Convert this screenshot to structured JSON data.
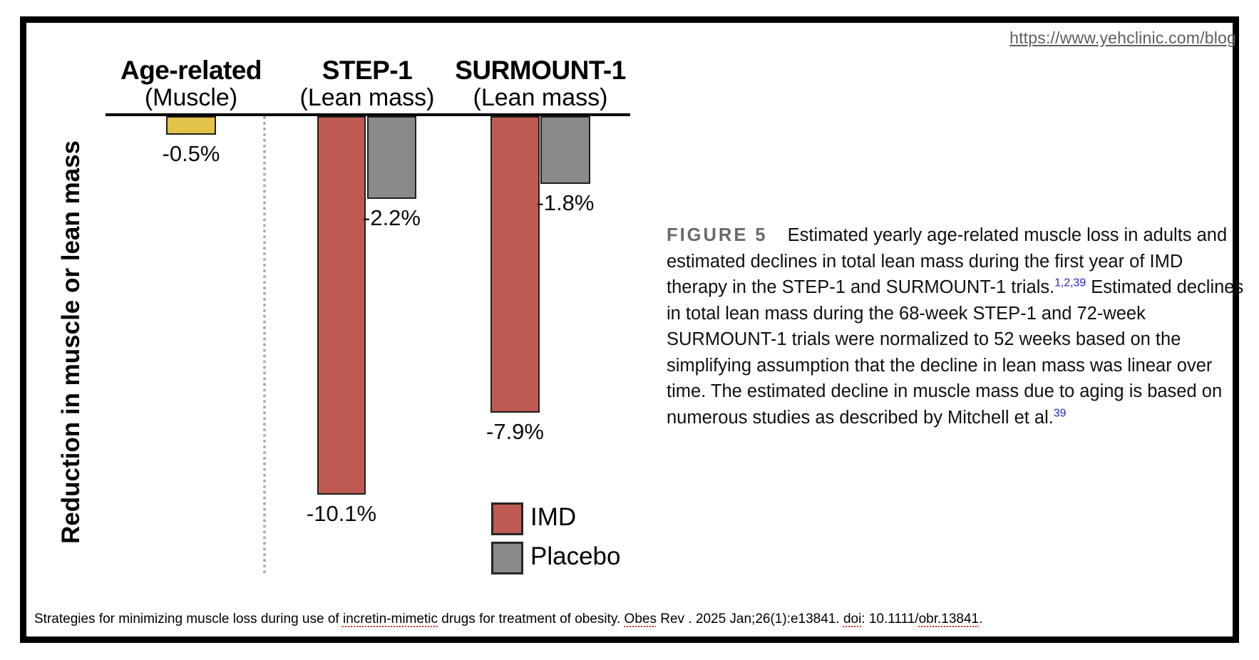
{
  "header": {
    "url_link": "https://www.yehclinic.com/blog"
  },
  "chart_data": {
    "type": "bar",
    "orientation": "vertical-negative",
    "ylabel": "Reduction in muscle or lean mass",
    "units": "%",
    "ylim": [
      -11,
      0
    ],
    "grid": false,
    "legend_position": "bottom-right-inside",
    "groups": [
      {
        "title": "Age-related",
        "subtitle": "(Muscle)",
        "bars": [
          {
            "series": "Age-related muscle loss",
            "value": -0.5,
            "label": "-0.5%",
            "color": "#E3C24A"
          }
        ]
      },
      {
        "title": "STEP-1",
        "subtitle": "(Lean mass)",
        "bars": [
          {
            "series": "IMD",
            "value": -10.1,
            "label": "-10.1%",
            "color": "#BF5A52"
          },
          {
            "series": "Placebo",
            "value": -2.2,
            "label": "-2.2%",
            "color": "#8A8A8A"
          }
        ]
      },
      {
        "title": "SURMOUNT-1",
        "subtitle": "(Lean mass)",
        "bars": [
          {
            "series": "IMD",
            "value": -7.9,
            "label": "-7.9%",
            "color": "#BF5A52"
          },
          {
            "series": "Placebo",
            "value": -1.8,
            "label": "-1.8%",
            "color": "#8A8A8A"
          }
        ]
      }
    ],
    "legend": [
      {
        "label": "IMD",
        "color": "#BF5A52"
      },
      {
        "label": "Placebo",
        "color": "#8A8A8A"
      }
    ]
  },
  "figure_caption": {
    "label": "FIGURE 5",
    "text_1": "Estimated yearly age-related muscle loss in adults and estimated declines in total lean mass during the first year of IMD therapy in the STEP-1 and SURMOUNT-1 trials.",
    "sup_1": "1,2,39",
    "text_2": " Estimated declines in total lean mass during the 68-week STEP-1 and 72-week SURMOUNT-1 trials were normalized to 52 weeks based on the simplifying assumption that the decline in lean mass was linear over time. The estimated decline in muscle mass due to aging is based on numerous studies as described by Mitchell et al.",
    "sup_2": "39"
  },
  "citation": {
    "p1": "Strategies for minimizing muscle loss during use of ",
    "m1": "incretin-mimetic",
    "p2": " drugs for treatment of obesity. ",
    "m2": "Obes",
    "p3": " Rev . 2025 Jan;26(1):e13841. ",
    "m3": "doi",
    "p4": ": 10.1111/",
    "m4": "obr.13841",
    "p5": "."
  }
}
